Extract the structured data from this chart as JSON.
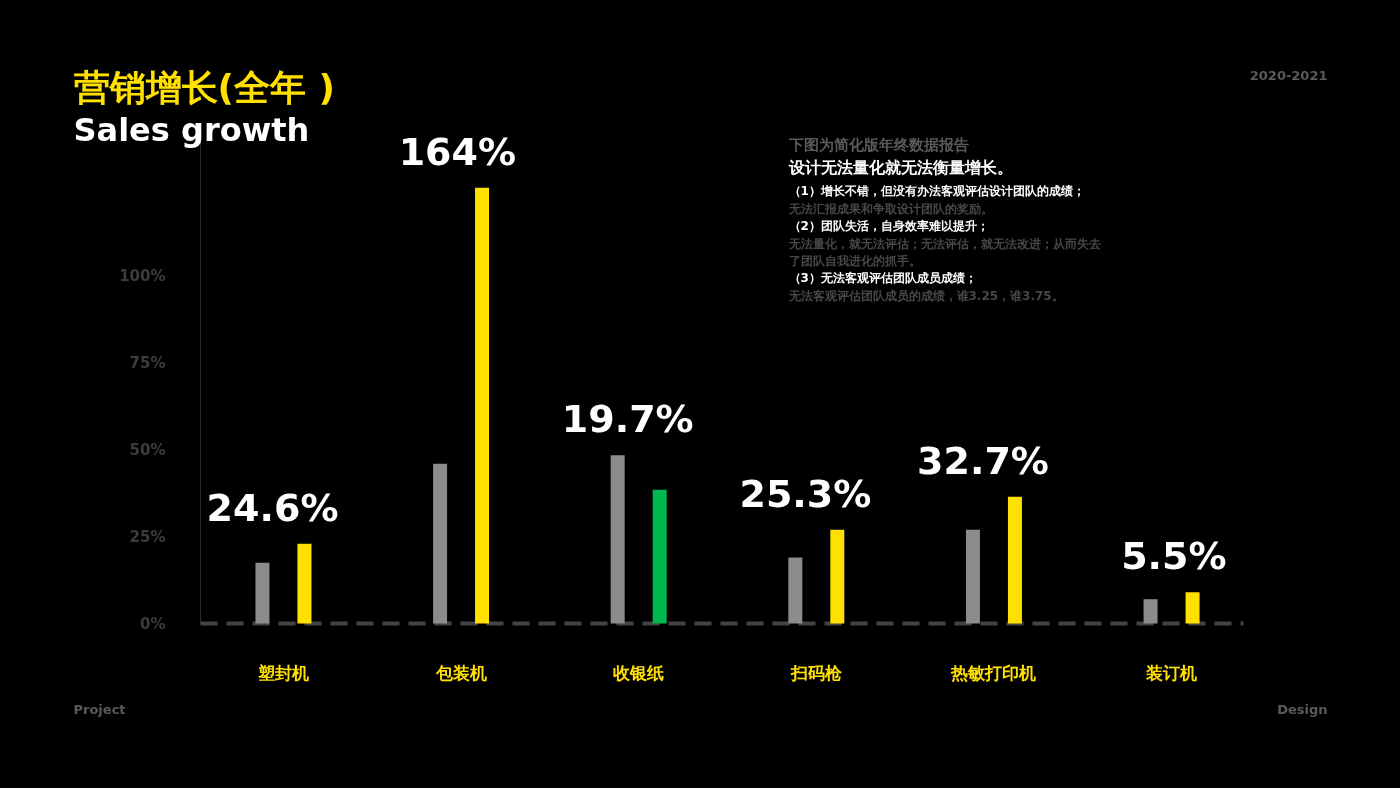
{
  "chart_data": {
    "type": "bar",
    "title": "营销增长(全年 )",
    "subtitle": "Sales growth",
    "categories": [
      "塑封机",
      "包装机",
      "收银纸",
      "扫码枪",
      "热敏打印机",
      "装订机"
    ],
    "series": [
      {
        "color": "#8c8c8c",
        "values": [
          17.5,
          46,
          48.5,
          19,
          27,
          7
        ]
      },
      {
        "colors": [
          "#ffe000",
          "#ffe000",
          "#00b84f",
          "#ffe000",
          "#ffe000",
          "#ffe000"
        ],
        "values": [
          23,
          125.5,
          38.5,
          27,
          36.5,
          9
        ]
      }
    ],
    "ylim": [
      0,
      140
    ],
    "yticks": [
      {
        "value": 0,
        "label": "0%"
      },
      {
        "value": 25,
        "label": "25%"
      },
      {
        "value": 50,
        "label": "50%"
      },
      {
        "value": 75,
        "label": "75%"
      },
      {
        "value": 100,
        "label": "100%"
      }
    ],
    "grid": false,
    "annotations": [
      "24.6%",
      "164%",
      "19.7%",
      "25.3%",
      "32.7%",
      "5.5%",
      "2020-2021",
      "下图为简化版年终数据报告",
      "设计无法量化就无法衡量增长。",
      "（1）增长不错，但没有办法客观评估设计团队的成绩；",
      "无法汇报成果和争取设计团队的奖励。",
      "（2）团队失活，自身效率难以提升；",
      "无法量化，就无法评估；无法评估，就无法改进；从而失去",
      "了团队自我进化的抓手。",
      "（3）无法客观评估团队成员成绩；",
      "无法客观评估团队成员的成绩，谁3.25，谁3.75。",
      "Project",
      "Design"
    ]
  }
}
